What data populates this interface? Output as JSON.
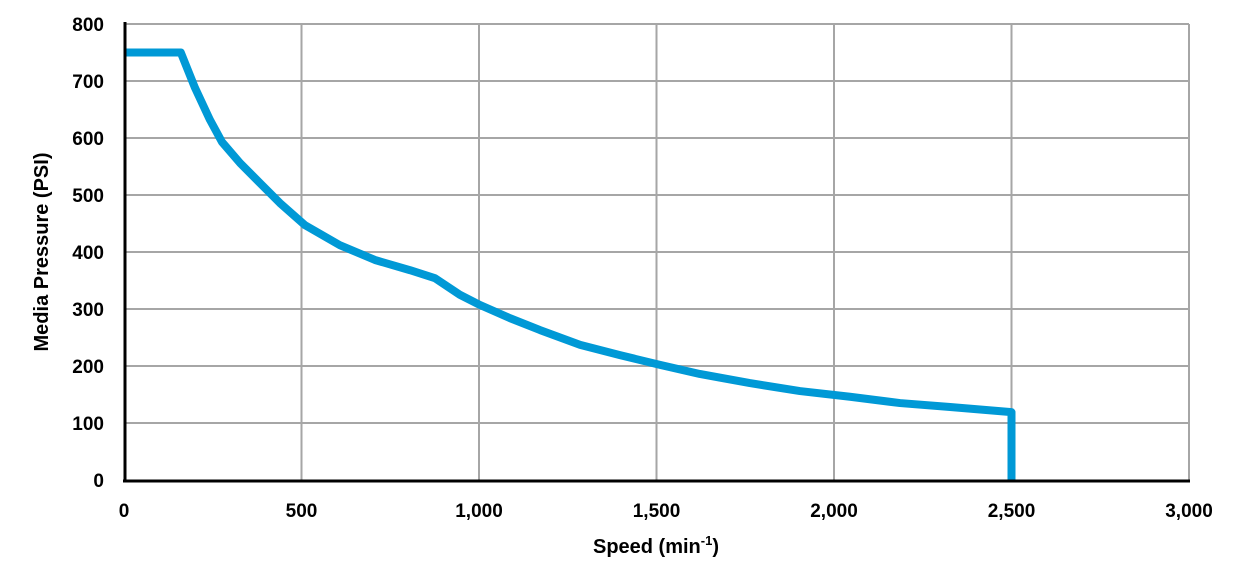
{
  "chart_data": {
    "type": "line",
    "title": "",
    "xlabel": "Speed (min",
    "xlabel_sup": "-1",
    "xlabel_end": ")",
    "ylabel": "Media Pressure (PSI)",
    "xlim": [
      0,
      3000
    ],
    "ylim": [
      0,
      800
    ],
    "xticks": [
      0,
      500,
      1000,
      1500,
      2000,
      2500,
      3000
    ],
    "xtick_labels": [
      "0",
      "500",
      "1,000",
      "1,500",
      "2,000",
      "2,500",
      "3,000"
    ],
    "yticks": [
      0,
      100,
      200,
      300,
      400,
      500,
      600,
      700,
      800
    ],
    "ytick_labels": [
      "0",
      "100",
      "200",
      "300",
      "400",
      "500",
      "600",
      "700",
      "800"
    ],
    "grid": true,
    "line_color": "#0099D6",
    "series": [
      {
        "x": [
          0,
          160,
          200,
          242,
          276,
          327,
          383,
          439,
          510,
          608,
          707,
          806,
          876,
          946,
          1003,
          1087,
          1172,
          1285,
          1397,
          1510,
          1622,
          1763,
          1904,
          2045,
          2186,
          2327,
          2500,
          2500
        ],
        "y": [
          750,
          750,
          688,
          632,
          593,
          556,
          521,
          486,
          447,
          412,
          386,
          368,
          354,
          325,
          307,
          284,
          263,
          237,
          219,
          202,
          186,
          170,
          156,
          146,
          135,
          128,
          119,
          0
        ]
      }
    ]
  }
}
